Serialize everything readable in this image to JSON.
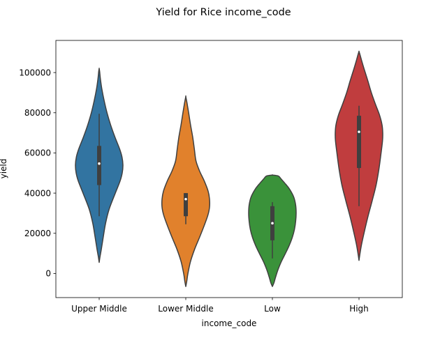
{
  "chart_data": {
    "type": "violin",
    "title": "Yield for Rice income_code",
    "xlabel": "income_code",
    "ylabel": "yield",
    "ylim": [
      -12000,
      116000
    ],
    "yticks": [
      0,
      20000,
      40000,
      60000,
      80000,
      100000
    ],
    "ytick_labels": [
      "0",
      "20000",
      "40000",
      "60000",
      "80000",
      "100000"
    ],
    "grid": false,
    "categories": [
      "Upper Middle",
      "Lower Middle",
      "Low",
      "High"
    ],
    "colors": [
      "#3274a1",
      "#e1812c",
      "#3a923a",
      "#c03d3e"
    ],
    "violins": [
      {
        "category": "Upper Middle",
        "range": [
          5500,
          102000
        ],
        "whisker": [
          28500,
          79500
        ],
        "quartiles": [
          44000,
          63500
        ],
        "median": 54700,
        "density_profile": [
          [
            5500,
            0
          ],
          [
            8000,
            0.03
          ],
          [
            12000,
            0.09
          ],
          [
            18000,
            0.17
          ],
          [
            25000,
            0.27
          ],
          [
            32000,
            0.42
          ],
          [
            40000,
            0.68
          ],
          [
            46000,
            0.88
          ],
          [
            50000,
            0.97
          ],
          [
            54000,
            1.0
          ],
          [
            58000,
            0.96
          ],
          [
            62000,
            0.86
          ],
          [
            68000,
            0.66
          ],
          [
            74000,
            0.48
          ],
          [
            80000,
            0.33
          ],
          [
            86000,
            0.21
          ],
          [
            92000,
            0.11
          ],
          [
            97000,
            0.05
          ],
          [
            100500,
            0.02
          ],
          [
            102000,
            0
          ]
        ]
      },
      {
        "category": "Lower Middle",
        "range": [
          -6500,
          88000
        ],
        "whisker": [
          24500,
          40000
        ],
        "quartiles": [
          28500,
          40000
        ],
        "median": 37000,
        "density_profile": [
          [
            -6500,
            0
          ],
          [
            -4000,
            0.04
          ],
          [
            0,
            0.09
          ],
          [
            6000,
            0.2
          ],
          [
            12000,
            0.37
          ],
          [
            18000,
            0.58
          ],
          [
            24000,
            0.78
          ],
          [
            29000,
            0.93
          ],
          [
            33000,
            1.0
          ],
          [
            37000,
            1.0
          ],
          [
            41000,
            0.94
          ],
          [
            46000,
            0.78
          ],
          [
            51000,
            0.58
          ],
          [
            56000,
            0.43
          ],
          [
            62000,
            0.36
          ],
          [
            68000,
            0.29
          ],
          [
            74000,
            0.2
          ],
          [
            80000,
            0.12
          ],
          [
            85000,
            0.05
          ],
          [
            88000,
            0
          ]
        ]
      },
      {
        "category": "Low",
        "range": [
          -6500,
          49000
        ],
        "whisker": [
          7500,
          35500
        ],
        "quartiles": [
          16500,
          33500
        ],
        "median": 25000,
        "density_profile": [
          [
            -6500,
            0
          ],
          [
            -4500,
            0.07
          ],
          [
            -2000,
            0.13
          ],
          [
            2000,
            0.24
          ],
          [
            6000,
            0.38
          ],
          [
            10000,
            0.55
          ],
          [
            14000,
            0.71
          ],
          [
            18000,
            0.84
          ],
          [
            22000,
            0.93
          ],
          [
            26000,
            0.98
          ],
          [
            30000,
            1.0
          ],
          [
            34000,
            0.98
          ],
          [
            38000,
            0.9
          ],
          [
            42000,
            0.72
          ],
          [
            45000,
            0.52
          ],
          [
            47000,
            0.37
          ],
          [
            48500,
            0.25
          ],
          [
            49000,
            0
          ]
        ]
      },
      {
        "category": "High",
        "range": [
          6500,
          110500
        ],
        "whisker": [
          33500,
          83500
        ],
        "quartiles": [
          52500,
          78500
        ],
        "median": 70500,
        "density_profile": [
          [
            6500,
            0
          ],
          [
            9000,
            0.03
          ],
          [
            14000,
            0.1
          ],
          [
            20000,
            0.21
          ],
          [
            28000,
            0.37
          ],
          [
            36000,
            0.55
          ],
          [
            44000,
            0.72
          ],
          [
            52000,
            0.84
          ],
          [
            60000,
            0.93
          ],
          [
            66000,
            0.99
          ],
          [
            70000,
            1.0
          ],
          [
            74000,
            0.97
          ],
          [
            79000,
            0.86
          ],
          [
            84000,
            0.7
          ],
          [
            90000,
            0.52
          ],
          [
            96000,
            0.37
          ],
          [
            102000,
            0.21
          ],
          [
            106000,
            0.11
          ],
          [
            109000,
            0.04
          ],
          [
            110500,
            0
          ]
        ]
      }
    ]
  }
}
